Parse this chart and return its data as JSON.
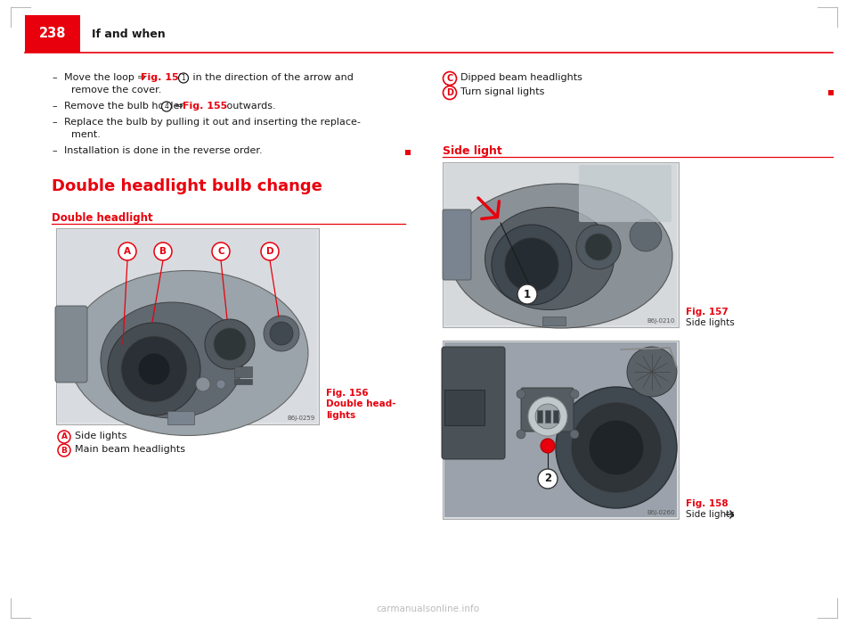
{
  "page_number": "238",
  "header_title": "If and when",
  "header_bg_color": "#e8000d",
  "header_text_color": "#ffffff",
  "header_line_color": "#e8000d",
  "background_color": "#ffffff",
  "text_color": "#1a1a1a",
  "red_color": "#e8000d",
  "watermark": "carmanualsonline.info",
  "corner_marks_color": "#bbbbbb",
  "fig156_id": "B6J-0259",
  "fig157_id": "B6J-0210",
  "fig158_id": "B6J-0260",
  "fig_caption_color": "#e8000d",
  "img_bg_color": "#dde0e4",
  "img_body_color": "#8a9298",
  "img_dark_color": "#555e64",
  "img_darker_color": "#2e3438"
}
